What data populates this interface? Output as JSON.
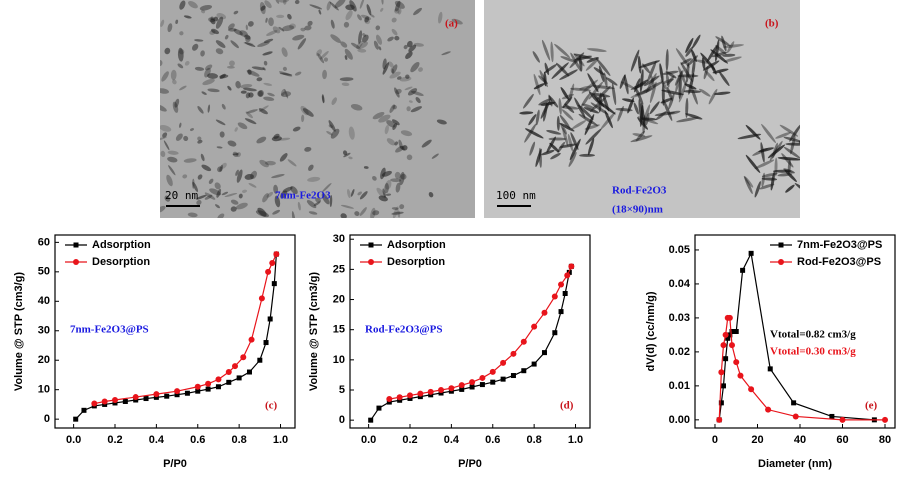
{
  "images": [
    {
      "label": "(a)",
      "scale": "20 nm",
      "caption": "7nm-Fe2O3"
    },
    {
      "label": "(b)",
      "scale": "100 nm",
      "caption": "Rod-Fe2O3",
      "subcaption": "(18×90)nm"
    }
  ],
  "chart_data": [
    {
      "type": "line",
      "panel_label": "(c)",
      "sample_label": "7nm-Fe2O3@PS",
      "xlabel": "P/P0",
      "ylabel": "Volume @ STP (cm3/g)",
      "legend": "upper left",
      "xlim": [
        -0.09,
        1.07
      ],
      "ylim": [
        -3,
        62.5
      ],
      "xticks": [
        {
          "value": 0,
          "label": "0.0"
        },
        0.2,
        0.4,
        0.6,
        0.8,
        {
          "value": 1,
          "label": "1.0"
        }
      ],
      "yticks": [
        0,
        10,
        20,
        30,
        40,
        50,
        60
      ],
      "series": [
        {
          "name": "Adsorption",
          "color": "#000000",
          "marker": "square",
          "x": [
            0.01,
            0.05,
            0.1,
            0.15,
            0.2,
            0.25,
            0.3,
            0.35,
            0.4,
            0.45,
            0.5,
            0.55,
            0.6,
            0.65,
            0.7,
            0.75,
            0.8,
            0.85,
            0.9,
            0.93,
            0.95,
            0.97,
            0.98
          ],
          "values": [
            0,
            3,
            4.5,
            5,
            5.5,
            6,
            6.5,
            7,
            7.4,
            7.8,
            8.3,
            8.8,
            9.5,
            10.2,
            11,
            12.5,
            14,
            16,
            20,
            26,
            34,
            46,
            56
          ]
        },
        {
          "name": "Desorption",
          "color": "#e8141b",
          "marker": "circle",
          "x": [
            0.98,
            0.96,
            0.94,
            0.91,
            0.86,
            0.82,
            0.78,
            0.75,
            0.7,
            0.65,
            0.6,
            0.5,
            0.4,
            0.3,
            0.2,
            0.15,
            0.1
          ],
          "values": [
            56,
            53,
            50,
            41,
            27,
            21,
            18,
            16,
            13.5,
            12,
            11,
            9.5,
            8.5,
            7.5,
            6.5,
            6,
            5.3
          ]
        }
      ]
    },
    {
      "type": "line",
      "panel_label": "(d)",
      "sample_label": "Rod-Fe2O3@PS",
      "xlabel": "P/P0",
      "ylabel": "Volume @ STP (cm3/g)",
      "legend": "upper left",
      "xlim": [
        -0.09,
        1.07
      ],
      "ylim": [
        -1.3,
        30.7
      ],
      "xticks": [
        {
          "value": 0,
          "label": "0.0"
        },
        0.2,
        0.4,
        0.6,
        0.8,
        {
          "value": 1,
          "label": "1.0"
        }
      ],
      "yticks": [
        0,
        5,
        10,
        15,
        20,
        25,
        30
      ],
      "series": [
        {
          "name": "Adsorption",
          "color": "#000000",
          "marker": "square",
          "x": [
            0.01,
            0.05,
            0.1,
            0.15,
            0.2,
            0.25,
            0.3,
            0.35,
            0.4,
            0.45,
            0.5,
            0.55,
            0.6,
            0.65,
            0.7,
            0.75,
            0.8,
            0.85,
            0.9,
            0.93,
            0.95,
            0.97,
            0.98
          ],
          "values": [
            0,
            2,
            3,
            3.3,
            3.6,
            3.9,
            4.2,
            4.5,
            4.8,
            5.1,
            5.5,
            5.9,
            6.3,
            6.8,
            7.4,
            8.2,
            9.3,
            11.2,
            14.5,
            18,
            21,
            24.5,
            25.5
          ]
        },
        {
          "name": "Desorption",
          "color": "#e8141b",
          "marker": "circle",
          "x": [
            0.98,
            0.96,
            0.93,
            0.9,
            0.85,
            0.8,
            0.75,
            0.7,
            0.65,
            0.6,
            0.55,
            0.5,
            0.45,
            0.4,
            0.35,
            0.3,
            0.25,
            0.2,
            0.15,
            0.1
          ],
          "values": [
            25.5,
            24,
            22.5,
            20.5,
            17.8,
            15.5,
            13,
            11,
            9.5,
            8,
            7,
            6.3,
            5.8,
            5.3,
            5,
            4.7,
            4.4,
            4.1,
            3.8,
            3.5
          ]
        }
      ]
    },
    {
      "type": "line",
      "panel_label": "(e)",
      "xlabel": "Diameter (nm)",
      "ylabel": "dV(d) (cc/nm/g)",
      "legend": "upper right",
      "xlim": [
        -9.4,
        84.7
      ],
      "ylim": [
        -0.0024,
        0.0544
      ],
      "xticks": [
        0,
        20,
        40,
        60,
        80
      ],
      "yticks": [
        {
          "value": 0,
          "label": "0.00"
        },
        0.01,
        0.02,
        0.03,
        0.04,
        0.05
      ],
      "annotations": [
        {
          "text": "Vtotal=0.82 cm3/g",
          "color": "#000000"
        },
        {
          "text": "Vtotal=0.30 cm3/g",
          "color": "#e8141b"
        }
      ],
      "series": [
        {
          "name": "7nm-Fe2O3@PS",
          "color": "#000000",
          "marker": "square",
          "x": [
            2,
            3,
            4,
            5,
            6,
            7,
            8,
            10,
            13,
            17,
            26,
            37,
            55,
            75
          ],
          "values": [
            0,
            0.005,
            0.01,
            0.018,
            0.024,
            0.025,
            0.026,
            0.026,
            0.044,
            0.049,
            0.015,
            0.005,
            0.001,
            0
          ]
        },
        {
          "name": "Rod-Fe2O3@PS",
          "color": "#e8141b",
          "marker": "circle",
          "x": [
            2,
            3,
            4,
            5,
            6,
            7,
            8,
            10,
            12,
            17,
            25,
            38,
            60,
            80
          ],
          "values": [
            0,
            0.014,
            0.022,
            0.025,
            0.03,
            0.03,
            0.022,
            0.017,
            0.013,
            0.009,
            0.003,
            0.001,
            0,
            0
          ]
        }
      ]
    }
  ]
}
